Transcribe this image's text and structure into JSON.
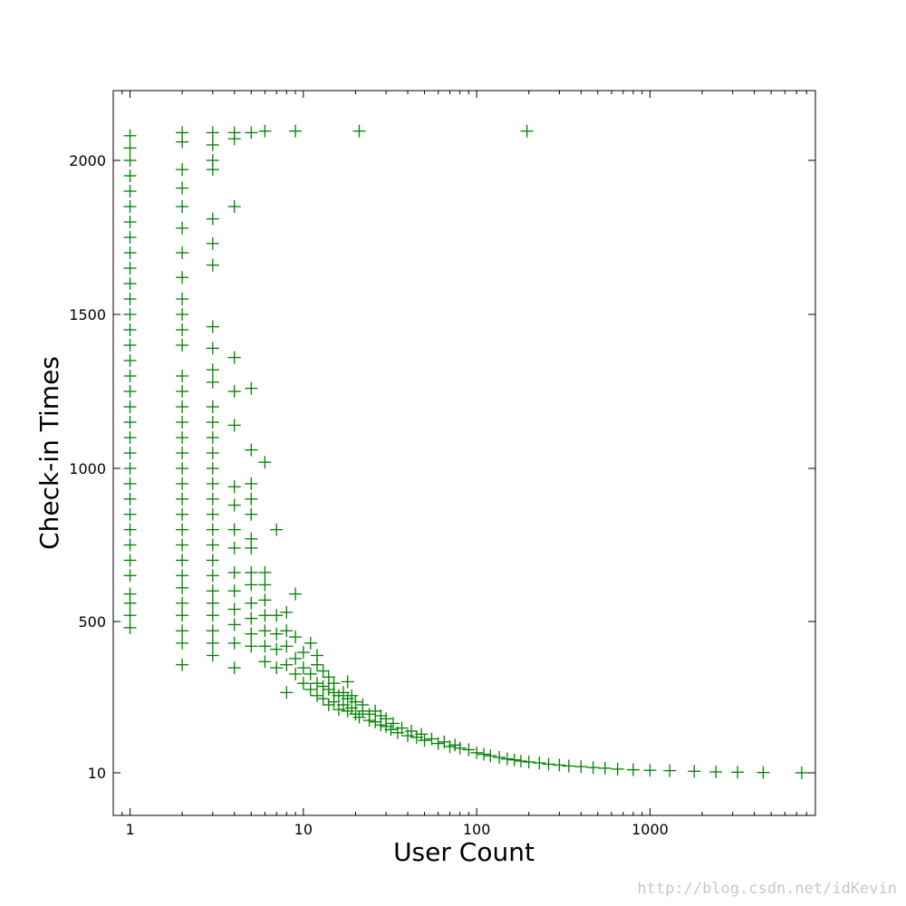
{
  "chart_data": {
    "type": "scatter",
    "xlabel": "User Count",
    "ylabel": "Check-in Times",
    "x_scale": "log",
    "xlim": [
      0.8,
      9000
    ],
    "x_ticks": [
      1,
      10,
      100,
      1000
    ],
    "x_tick_labels": [
      "1",
      "10",
      "100",
      "1000"
    ],
    "y_tick_labels": [
      "10",
      "500",
      "1000",
      "1500",
      "2000"
    ],
    "marker": "+",
    "marker_color": "#007f00",
    "grid": false,
    "legend": "none",
    "points": [
      {
        "x": 1,
        "y": 480
      },
      {
        "x": 1,
        "y": 520
      },
      {
        "x": 1,
        "y": 560
      },
      {
        "x": 1,
        "y": 590
      },
      {
        "x": 1,
        "y": 650
      },
      {
        "x": 1,
        "y": 700
      },
      {
        "x": 1,
        "y": 750
      },
      {
        "x": 1,
        "y": 800
      },
      {
        "x": 1,
        "y": 850
      },
      {
        "x": 1,
        "y": 900
      },
      {
        "x": 1,
        "y": 950
      },
      {
        "x": 1,
        "y": 1000
      },
      {
        "x": 1,
        "y": 1050
      },
      {
        "x": 1,
        "y": 1100
      },
      {
        "x": 1,
        "y": 1150
      },
      {
        "x": 1,
        "y": 1200
      },
      {
        "x": 1,
        "y": 1250
      },
      {
        "x": 1,
        "y": 1300
      },
      {
        "x": 1,
        "y": 1350
      },
      {
        "x": 1,
        "y": 1400
      },
      {
        "x": 1,
        "y": 1450
      },
      {
        "x": 1,
        "y": 1500
      },
      {
        "x": 1,
        "y": 1550
      },
      {
        "x": 1,
        "y": 1600
      },
      {
        "x": 1,
        "y": 1650
      },
      {
        "x": 1,
        "y": 1700
      },
      {
        "x": 1,
        "y": 1750
      },
      {
        "x": 1,
        "y": 1800
      },
      {
        "x": 1,
        "y": 1850
      },
      {
        "x": 1,
        "y": 1900
      },
      {
        "x": 1,
        "y": 1950
      },
      {
        "x": 1,
        "y": 2000
      },
      {
        "x": 1,
        "y": 2040
      },
      {
        "x": 1,
        "y": 2080
      },
      {
        "x": 2,
        "y": 360
      },
      {
        "x": 2,
        "y": 430
      },
      {
        "x": 2,
        "y": 470
      },
      {
        "x": 2,
        "y": 520
      },
      {
        "x": 2,
        "y": 560
      },
      {
        "x": 2,
        "y": 610
      },
      {
        "x": 2,
        "y": 650
      },
      {
        "x": 2,
        "y": 700
      },
      {
        "x": 2,
        "y": 750
      },
      {
        "x": 2,
        "y": 800
      },
      {
        "x": 2,
        "y": 850
      },
      {
        "x": 2,
        "y": 900
      },
      {
        "x": 2,
        "y": 950
      },
      {
        "x": 2,
        "y": 1000
      },
      {
        "x": 2,
        "y": 1050
      },
      {
        "x": 2,
        "y": 1100
      },
      {
        "x": 2,
        "y": 1150
      },
      {
        "x": 2,
        "y": 1200
      },
      {
        "x": 2,
        "y": 1250
      },
      {
        "x": 2,
        "y": 1300
      },
      {
        "x": 2,
        "y": 1400
      },
      {
        "x": 2,
        "y": 1450
      },
      {
        "x": 2,
        "y": 1500
      },
      {
        "x": 2,
        "y": 1550
      },
      {
        "x": 2,
        "y": 1620
      },
      {
        "x": 2,
        "y": 1700
      },
      {
        "x": 2,
        "y": 1780
      },
      {
        "x": 2,
        "y": 1850
      },
      {
        "x": 2,
        "y": 1910
      },
      {
        "x": 2,
        "y": 1970
      },
      {
        "x": 2,
        "y": 2060
      },
      {
        "x": 2,
        "y": 2090
      },
      {
        "x": 3,
        "y": 390
      },
      {
        "x": 3,
        "y": 430
      },
      {
        "x": 3,
        "y": 470
      },
      {
        "x": 3,
        "y": 520
      },
      {
        "x": 3,
        "y": 560
      },
      {
        "x": 3,
        "y": 600
      },
      {
        "x": 3,
        "y": 650
      },
      {
        "x": 3,
        "y": 700
      },
      {
        "x": 3,
        "y": 750
      },
      {
        "x": 3,
        "y": 800
      },
      {
        "x": 3,
        "y": 850
      },
      {
        "x": 3,
        "y": 900
      },
      {
        "x": 3,
        "y": 950
      },
      {
        "x": 3,
        "y": 1000
      },
      {
        "x": 3,
        "y": 1050
      },
      {
        "x": 3,
        "y": 1100
      },
      {
        "x": 3,
        "y": 1150
      },
      {
        "x": 3,
        "y": 1200
      },
      {
        "x": 3,
        "y": 1280
      },
      {
        "x": 3,
        "y": 1320
      },
      {
        "x": 3,
        "y": 1390
      },
      {
        "x": 3,
        "y": 1460
      },
      {
        "x": 3,
        "y": 1660
      },
      {
        "x": 3,
        "y": 1730
      },
      {
        "x": 3,
        "y": 1810
      },
      {
        "x": 3,
        "y": 1970
      },
      {
        "x": 3,
        "y": 2000
      },
      {
        "x": 3,
        "y": 2050
      },
      {
        "x": 3,
        "y": 2090
      },
      {
        "x": 4,
        "y": 350
      },
      {
        "x": 4,
        "y": 430
      },
      {
        "x": 4,
        "y": 490
      },
      {
        "x": 4,
        "y": 540
      },
      {
        "x": 4,
        "y": 600
      },
      {
        "x": 4,
        "y": 660
      },
      {
        "x": 4,
        "y": 740
      },
      {
        "x": 4,
        "y": 800
      },
      {
        "x": 4,
        "y": 880
      },
      {
        "x": 4,
        "y": 940
      },
      {
        "x": 4,
        "y": 1140
      },
      {
        "x": 4,
        "y": 1250
      },
      {
        "x": 4,
        "y": 1360
      },
      {
        "x": 4,
        "y": 1850
      },
      {
        "x": 4,
        "y": 2070
      },
      {
        "x": 4,
        "y": 2090
      },
      {
        "x": 5,
        "y": 420
      },
      {
        "x": 5,
        "y": 460
      },
      {
        "x": 5,
        "y": 510
      },
      {
        "x": 5,
        "y": 560
      },
      {
        "x": 5,
        "y": 620
      },
      {
        "x": 5,
        "y": 660
      },
      {
        "x": 5,
        "y": 740
      },
      {
        "x": 5,
        "y": 770
      },
      {
        "x": 5,
        "y": 850
      },
      {
        "x": 5,
        "y": 900
      },
      {
        "x": 5,
        "y": 950
      },
      {
        "x": 5,
        "y": 1060
      },
      {
        "x": 5,
        "y": 1260
      },
      {
        "x": 5,
        "y": 2090
      },
      {
        "x": 6,
        "y": 370
      },
      {
        "x": 6,
        "y": 420
      },
      {
        "x": 6,
        "y": 470
      },
      {
        "x": 6,
        "y": 520
      },
      {
        "x": 6,
        "y": 570
      },
      {
        "x": 6,
        "y": 620
      },
      {
        "x": 6,
        "y": 660
      },
      {
        "x": 6,
        "y": 1020
      },
      {
        "x": 6,
        "y": 2095
      },
      {
        "x": 7,
        "y": 350
      },
      {
        "x": 7,
        "y": 410
      },
      {
        "x": 7,
        "y": 460
      },
      {
        "x": 7,
        "y": 520
      },
      {
        "x": 7,
        "y": 800
      },
      {
        "x": 8,
        "y": 270
      },
      {
        "x": 8,
        "y": 360
      },
      {
        "x": 8,
        "y": 420
      },
      {
        "x": 8,
        "y": 470
      },
      {
        "x": 8,
        "y": 530
      },
      {
        "x": 9,
        "y": 330
      },
      {
        "x": 9,
        "y": 380
      },
      {
        "x": 9,
        "y": 450
      },
      {
        "x": 9,
        "y": 590
      },
      {
        "x": 9,
        "y": 2095
      },
      {
        "x": 10,
        "y": 300
      },
      {
        "x": 10,
        "y": 350
      },
      {
        "x": 10,
        "y": 400
      },
      {
        "x": 11,
        "y": 280
      },
      {
        "x": 11,
        "y": 330
      },
      {
        "x": 11,
        "y": 430
      },
      {
        "x": 12,
        "y": 260
      },
      {
        "x": 12,
        "y": 300
      },
      {
        "x": 12,
        "y": 360
      },
      {
        "x": 12,
        "y": 390
      },
      {
        "x": 13,
        "y": 250
      },
      {
        "x": 13,
        "y": 290
      },
      {
        "x": 13,
        "y": 340
      },
      {
        "x": 14,
        "y": 230
      },
      {
        "x": 14,
        "y": 280
      },
      {
        "x": 14,
        "y": 320
      },
      {
        "x": 15,
        "y": 240
      },
      {
        "x": 15,
        "y": 270
      },
      {
        "x": 15,
        "y": 300
      },
      {
        "x": 16,
        "y": 215
      },
      {
        "x": 16,
        "y": 260
      },
      {
        "x": 17,
        "y": 230
      },
      {
        "x": 17,
        "y": 270
      },
      {
        "x": 18,
        "y": 210
      },
      {
        "x": 18,
        "y": 250
      },
      {
        "x": 18,
        "y": 305
      },
      {
        "x": 19,
        "y": 220
      },
      {
        "x": 19,
        "y": 260
      },
      {
        "x": 20,
        "y": 200
      },
      {
        "x": 20,
        "y": 240
      },
      {
        "x": 21,
        "y": 190
      },
      {
        "x": 21,
        "y": 2095
      },
      {
        "x": 22,
        "y": 210
      },
      {
        "x": 22,
        "y": 230
      },
      {
        "x": 24,
        "y": 180
      },
      {
        "x": 24,
        "y": 200
      },
      {
        "x": 26,
        "y": 175
      },
      {
        "x": 26,
        "y": 210
      },
      {
        "x": 28,
        "y": 165
      },
      {
        "x": 28,
        "y": 195
      },
      {
        "x": 30,
        "y": 160
      },
      {
        "x": 30,
        "y": 185
      },
      {
        "x": 32,
        "y": 150
      },
      {
        "x": 33,
        "y": 170
      },
      {
        "x": 35,
        "y": 140
      },
      {
        "x": 37,
        "y": 155
      },
      {
        "x": 40,
        "y": 130
      },
      {
        "x": 42,
        "y": 145
      },
      {
        "x": 45,
        "y": 125
      },
      {
        "x": 48,
        "y": 135
      },
      {
        "x": 50,
        "y": 115
      },
      {
        "x": 55,
        "y": 120
      },
      {
        "x": 60,
        "y": 105
      },
      {
        "x": 65,
        "y": 110
      },
      {
        "x": 70,
        "y": 95
      },
      {
        "x": 75,
        "y": 100
      },
      {
        "x": 80,
        "y": 90
      },
      {
        "x": 90,
        "y": 85
      },
      {
        "x": 100,
        "y": 75
      },
      {
        "x": 110,
        "y": 70
      },
      {
        "x": 120,
        "y": 65
      },
      {
        "x": 135,
        "y": 60
      },
      {
        "x": 150,
        "y": 55
      },
      {
        "x": 165,
        "y": 52
      },
      {
        "x": 180,
        "y": 48
      },
      {
        "x": 195,
        "y": 2095
      },
      {
        "x": 200,
        "y": 45
      },
      {
        "x": 230,
        "y": 42
      },
      {
        "x": 260,
        "y": 38
      },
      {
        "x": 300,
        "y": 35
      },
      {
        "x": 340,
        "y": 32
      },
      {
        "x": 400,
        "y": 30
      },
      {
        "x": 470,
        "y": 27
      },
      {
        "x": 550,
        "y": 25
      },
      {
        "x": 650,
        "y": 22
      },
      {
        "x": 800,
        "y": 20
      },
      {
        "x": 1000,
        "y": 18
      },
      {
        "x": 1300,
        "y": 17
      },
      {
        "x": 1800,
        "y": 15
      },
      {
        "x": 2400,
        "y": 13
      },
      {
        "x": 3200,
        "y": 12
      },
      {
        "x": 4500,
        "y": 11
      },
      {
        "x": 7500,
        "y": 10
      }
    ]
  },
  "watermark": "http://blog.csdn.net/idKevin"
}
